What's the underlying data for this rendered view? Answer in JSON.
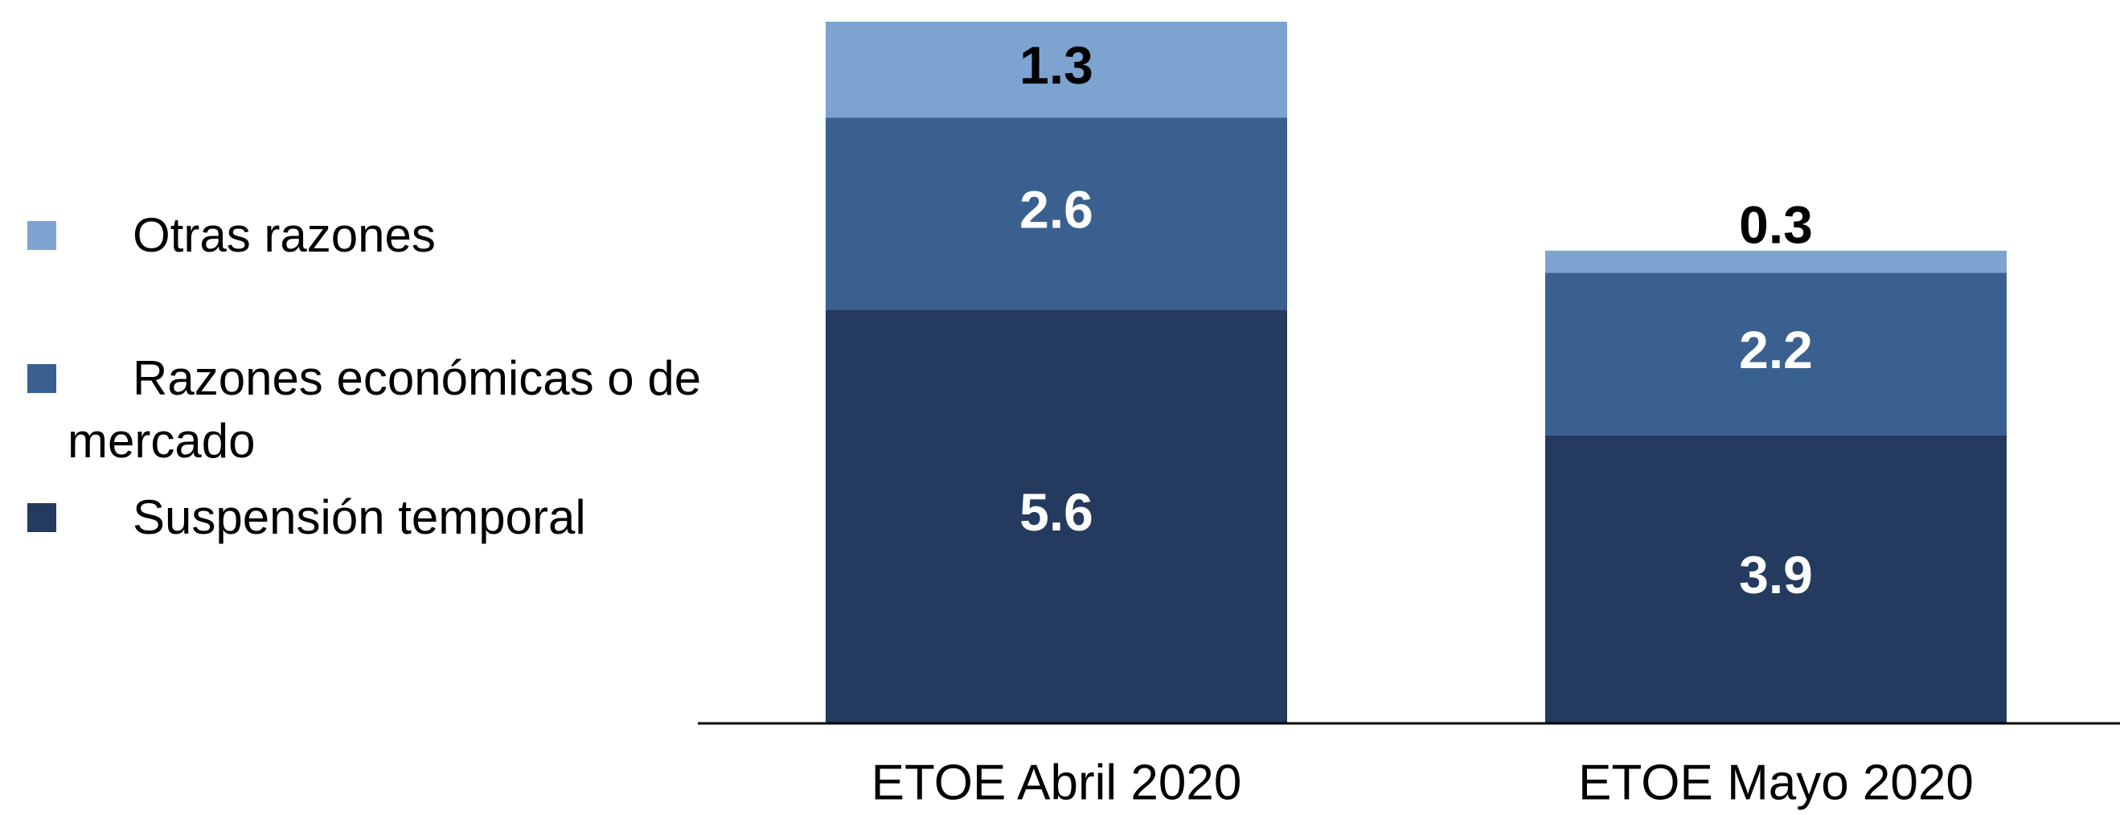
{
  "chart_data": {
    "type": "stacked_bar",
    "categories": [
      "ETOE Abril 2020",
      "ETOE Mayo 2020"
    ],
    "series": [
      {
        "name": "Suspensión temporal",
        "color": "#243a5e",
        "label_color": "#ffffff",
        "values": [
          5.6,
          3.9
        ]
      },
      {
        "name": "Razones económicas o de mercado",
        "color": "#3a6090",
        "label_color": "#ffffff",
        "values": [
          2.6,
          2.2
        ]
      },
      {
        "name": "Otras razones",
        "color": "#7ea3d0",
        "label_color": "#000000",
        "values": [
          1.3,
          0.3
        ]
      }
    ],
    "legend": "left"
  }
}
